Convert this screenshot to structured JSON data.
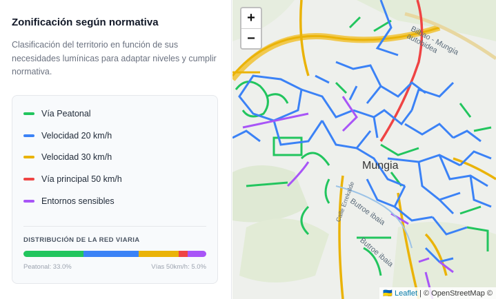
{
  "panel": {
    "title": "Zonificación según normativa",
    "description": "Clasificación del territorio en función de sus necesidades lumínicas para adaptar niveles y cumplir normativa."
  },
  "legend": [
    {
      "label": "Vía Peatonal",
      "color": "#22c55e"
    },
    {
      "label": "Velocidad 20 km/h",
      "color": "#3b82f6"
    },
    {
      "label": "Velocidad 30 km/h",
      "color": "#eab308"
    },
    {
      "label": "Vía principal 50 km/h",
      "color": "#ef4444"
    },
    {
      "label": "Entornos sensibles",
      "color": "#a855f7"
    }
  ],
  "distribution": {
    "title": "DISTRIBUCIÓN DE LA RED VIARIA",
    "segments": [
      {
        "percent": 33,
        "color": "#22c55e"
      },
      {
        "percent": 30,
        "color": "#3b82f6"
      },
      {
        "percent": 22,
        "color": "#eab308"
      },
      {
        "percent": 5,
        "color": "#ef4444"
      },
      {
        "percent": 10,
        "color": "#a855f7"
      }
    ],
    "left_stat": "Peatonal: 33.0%",
    "right_stat": "Vías 50km/h: 5.0%"
  },
  "map": {
    "zoom_in": "+",
    "zoom_out": "−",
    "town_label": "Mungia",
    "road_label_1": "Bilbao - Mungia autobidea",
    "road_label_2": "Butroe ibaia",
    "road_label_3": "Butroe ibaia",
    "road_label_4": "Calle Errekalde",
    "attribution_link": "Leaflet",
    "attribution_text": " | © OpenStreetMap ©"
  }
}
